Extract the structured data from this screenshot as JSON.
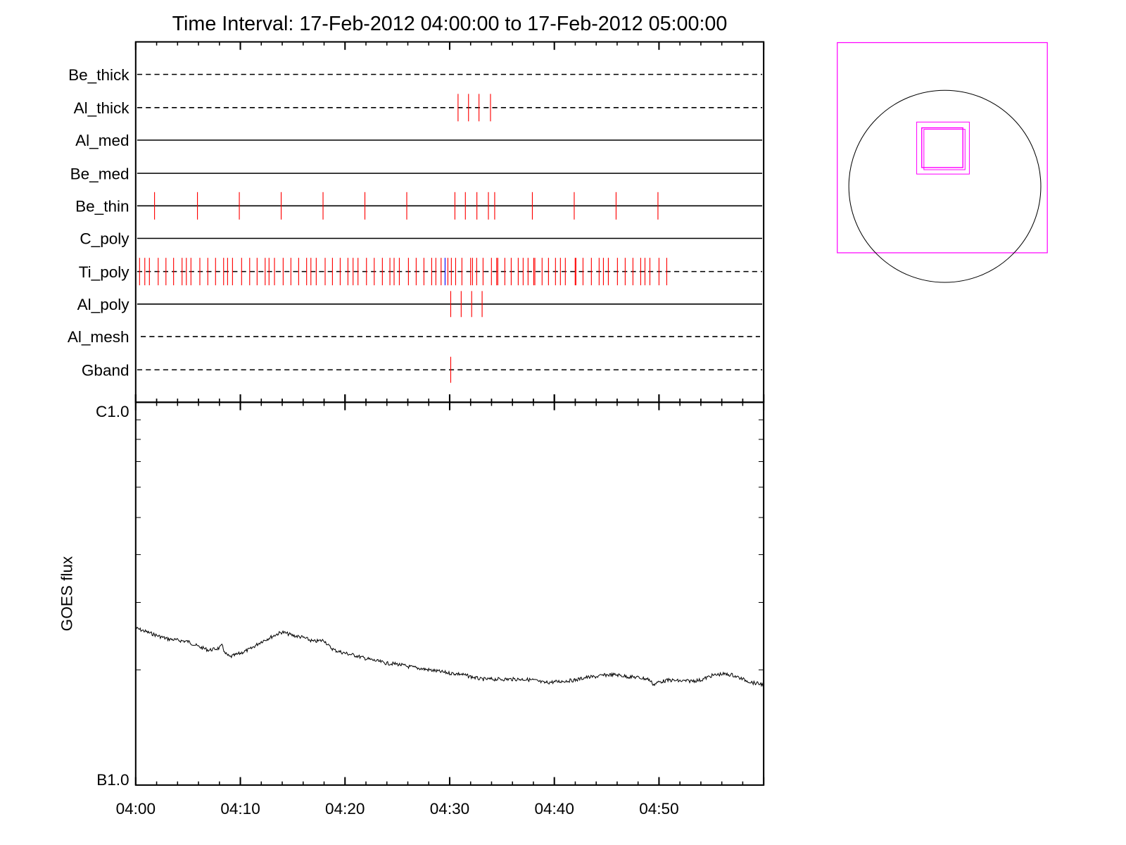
{
  "chart_data": [
    {
      "type": "table",
      "panel": "filter-timeline",
      "title": "Time Interval: 17-Feb-2012 04:00:00 to 17-Feb-2012 05:00:00",
      "x_unit": "minutes after 04:00",
      "xlim": [
        0,
        60
      ],
      "rows": [
        {
          "name": "Be_thick",
          "line": "dashed",
          "events": [],
          "blue_events": []
        },
        {
          "name": "Al_thick",
          "line": "dashed",
          "events": [
            30.8,
            31.8,
            32.8,
            33.9
          ],
          "blue_events": []
        },
        {
          "name": "Al_med",
          "line": "solid",
          "events": [],
          "blue_events": []
        },
        {
          "name": "Be_med",
          "line": "solid",
          "events": [],
          "blue_events": []
        },
        {
          "name": "Be_thin",
          "line": "solid",
          "events": [
            1.8,
            5.9,
            9.9,
            13.9,
            17.9,
            21.9,
            25.9,
            30.5,
            31.5,
            32.6,
            33.7,
            34.3,
            37.9,
            41.9,
            45.9,
            49.9
          ],
          "blue_events": []
        },
        {
          "name": "C_poly",
          "line": "solid",
          "events": [],
          "blue_events": []
        },
        {
          "name": "Ti_poly",
          "line": "dashed",
          "events": [
            0.37,
            0.87,
            1.31,
            2.15,
            2.89,
            3.62,
            4.43,
            4.84,
            5.28,
            6.13,
            6.89,
            7.63,
            8.4,
            8.78,
            9.25,
            10.12,
            10.89,
            11.6,
            12.37,
            12.74,
            13.26,
            14.09,
            14.83,
            15.57,
            16.33,
            16.74,
            17.25,
            18.1,
            18.8,
            19.54,
            20.28,
            20.77,
            21.24,
            22.05,
            22.79,
            23.57,
            24.29,
            24.69,
            25.19,
            26.06,
            26.8,
            27.54,
            28.28,
            28.68,
            29.18,
            29.83,
            30.16,
            30.57,
            31.17,
            32.0,
            32.18,
            32.58,
            33.19,
            33.99,
            34.49,
            34.6,
            35.27,
            35.88,
            36.55,
            37.02,
            37.49,
            38.03,
            38.14,
            38.83,
            39.44,
            40.11,
            40.58,
            41.05,
            41.99,
            42.06,
            42.74,
            43.54,
            44.28,
            44.69,
            45.16,
            46.03,
            46.77,
            47.51,
            48.25,
            48.66,
            49.13,
            50.0,
            50.74
          ],
          "blue_events": [
            29.56
          ]
        },
        {
          "name": "Al_poly",
          "line": "solid",
          "events": [
            30.1,
            31.1,
            32.1,
            33.1
          ],
          "blue_events": []
        },
        {
          "name": "Al_mesh",
          "line": "dashed",
          "events": [],
          "blue_events": []
        },
        {
          "name": "Gband",
          "line": "dashed",
          "events": [
            30.1
          ],
          "blue_events": []
        }
      ],
      "event_color": "#ff0000",
      "blue_event_color": "#0000ff"
    },
    {
      "type": "line",
      "panel": "goes-flux",
      "ylabel": "GOES flux",
      "yscale": "log",
      "ylim": [
        1e-07,
        1e-06
      ],
      "ytick_labels": [
        "C1.0",
        "B1.0"
      ],
      "xtick_labels": [
        "04:00",
        "04:10",
        "04:20",
        "04:30",
        "04:40",
        "04:50"
      ],
      "xlim": [
        0,
        60
      ],
      "x_unit": "minutes after 04:00",
      "y_unit": "1e-7 W/m^2",
      "series": [
        {
          "name": "GOES flux",
          "color": "#000000",
          "x": [
            0,
            2,
            3,
            5,
            6,
            7,
            8,
            8.3,
            8.5,
            9,
            10,
            11,
            12,
            13,
            13.5,
            14,
            15,
            16,
            17,
            18,
            18.5,
            19,
            20,
            21,
            22,
            23,
            24,
            25,
            26,
            27,
            28,
            29,
            30,
            31,
            32,
            33,
            34,
            35,
            36,
            37,
            38,
            39,
            40,
            41,
            42,
            43,
            44,
            45,
            46,
            47,
            48,
            49,
            49.5,
            50,
            51,
            52,
            53,
            54,
            55,
            56,
            57,
            58,
            59,
            60
          ],
          "values": [
            2.57,
            2.46,
            2.41,
            2.37,
            2.3,
            2.25,
            2.28,
            2.32,
            2.21,
            2.16,
            2.21,
            2.27,
            2.37,
            2.44,
            2.48,
            2.51,
            2.46,
            2.43,
            2.37,
            2.39,
            2.3,
            2.25,
            2.21,
            2.18,
            2.14,
            2.11,
            2.08,
            2.07,
            2.04,
            2.02,
            2.0,
            1.98,
            1.96,
            1.95,
            1.92,
            1.89,
            1.89,
            1.89,
            1.89,
            1.89,
            1.88,
            1.85,
            1.86,
            1.87,
            1.88,
            1.91,
            1.92,
            1.94,
            1.94,
            1.92,
            1.91,
            1.89,
            1.83,
            1.86,
            1.88,
            1.87,
            1.87,
            1.88,
            1.93,
            1.95,
            1.94,
            1.89,
            1.85,
            1.83
          ]
        }
      ]
    },
    {
      "type": "scatter",
      "panel": "solar-disk-fov",
      "description_colors": {
        "fov_box": "#ff00ff",
        "disk": "#000000"
      }
    }
  ]
}
